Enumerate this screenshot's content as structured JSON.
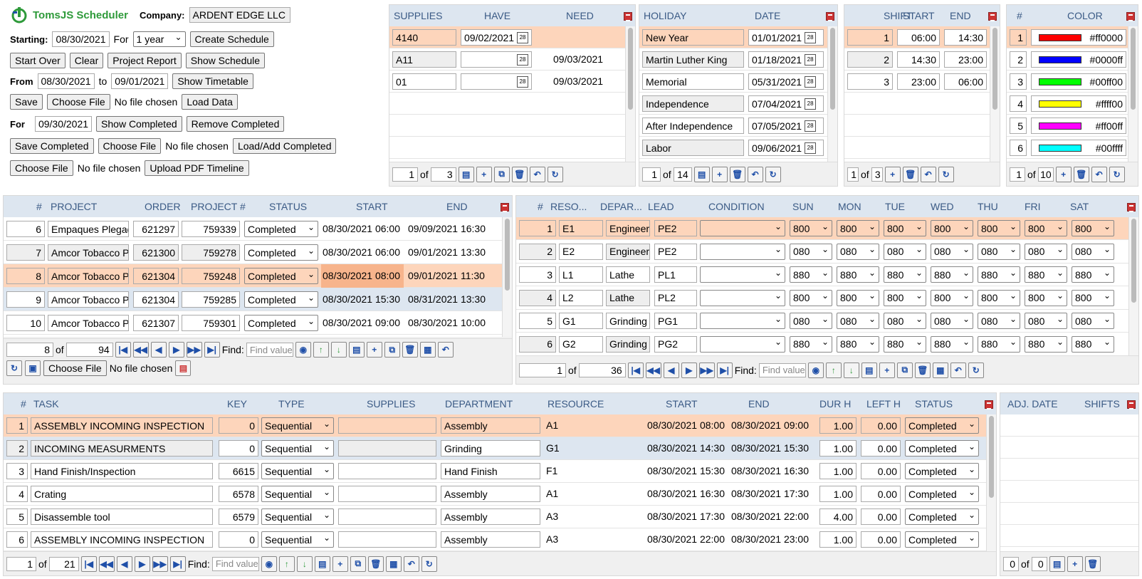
{
  "app": {
    "title": "TomsJS Scheduler",
    "company_label": "Company:",
    "company_value": "ARDENT EDGE LLC"
  },
  "controls": {
    "starting_label": "Starting:",
    "starting_value": "08/30/2021",
    "for_label": "For",
    "for_value": "1 year",
    "create_schedule": "Create Schedule",
    "start_over": "Start Over",
    "clear": "Clear",
    "project_report": "Project Report",
    "show_schedule": "Show Schedule",
    "from_label": "From",
    "from_value": "08/30/2021",
    "to_label": "to",
    "to_value": "09/01/2021",
    "show_timetable": "Show Timetable",
    "save": "Save",
    "choose_file": "Choose File",
    "no_file": "No file chosen",
    "load_data": "Load Data",
    "for2_label": "For",
    "for2_value": "09/30/2021",
    "show_completed": "Show Completed",
    "remove_completed": "Remove Completed",
    "save_completed": "Save Completed",
    "load_add_completed": "Load/Add Completed",
    "upload_pdf": "Upload PDF Timeline"
  },
  "supplies": {
    "headers": [
      "SUPPLIES",
      "HAVE",
      "NEED"
    ],
    "rows": [
      {
        "supply": "4140",
        "have": "09/02/2021",
        "need": ""
      },
      {
        "supply": "A11",
        "have": "",
        "need": "09/03/2021"
      },
      {
        "supply": "01",
        "have": "",
        "need": "09/03/2021"
      }
    ],
    "page": "1",
    "of": "of",
    "total": "3"
  },
  "holiday": {
    "headers": [
      "HOLIDAY",
      "DATE"
    ],
    "rows": [
      {
        "name": "New Year",
        "date": "01/01/2021"
      },
      {
        "name": "Martin Luther King",
        "date": "01/18/2021"
      },
      {
        "name": "Memorial",
        "date": "05/31/2021"
      },
      {
        "name": "Independence",
        "date": "07/04/2021"
      },
      {
        "name": "After Independence",
        "date": "07/05/2021"
      },
      {
        "name": "Labor",
        "date": "09/06/2021"
      }
    ],
    "page": "1",
    "of": "of",
    "total": "14"
  },
  "shift": {
    "headers": [
      "SHIFT",
      "START",
      "END"
    ],
    "rows": [
      {
        "shift": "1",
        "start": "06:00",
        "end": "14:30"
      },
      {
        "shift": "2",
        "start": "14:30",
        "end": "23:00"
      },
      {
        "shift": "3",
        "start": "23:00",
        "end": "06:00"
      }
    ],
    "page": "1",
    "of": "of",
    "total": "3"
  },
  "color": {
    "headers": [
      "#",
      "COLOR"
    ],
    "rows": [
      {
        "n": "1",
        "hex": "#ff0000"
      },
      {
        "n": "2",
        "hex": "#0000ff"
      },
      {
        "n": "3",
        "hex": "#00ff00"
      },
      {
        "n": "4",
        "hex": "#ffff00"
      },
      {
        "n": "5",
        "hex": "#ff00ff"
      },
      {
        "n": "6",
        "hex": "#00ffff"
      }
    ],
    "page": "1",
    "of": "of",
    "total": "10"
  },
  "project": {
    "headers": [
      "#",
      "PROJECT",
      "ORDER",
      "PROJECT #",
      "STATUS",
      "START",
      "END"
    ],
    "rows": [
      {
        "n": "6",
        "project": "Empaques Plegad",
        "order": "621297",
        "pnum": "759339",
        "status": "Completed",
        "start": "08/30/2021 06:00",
        "end": "09/09/2021 16:30"
      },
      {
        "n": "7",
        "project": "Amcor Tobacco P",
        "order": "621300",
        "pnum": "759278",
        "status": "Completed",
        "start": "08/30/2021 06:00",
        "end": "09/01/2021 13:30"
      },
      {
        "n": "8",
        "project": "Amcor Tobacco P",
        "order": "621304",
        "pnum": "759248",
        "status": "Completed",
        "start": "08/30/2021 08:00",
        "end": "09/01/2021 11:30"
      },
      {
        "n": "9",
        "project": "Amcor Tobacco P",
        "order": "621304",
        "pnum": "759285",
        "status": "Completed",
        "start": "08/30/2021 15:30",
        "end": "08/31/2021 13:30"
      },
      {
        "n": "10",
        "project": "Amcor Tobacco P",
        "order": "621307",
        "pnum": "759301",
        "status": "Completed",
        "start": "08/30/2021 09:00",
        "end": "08/30/2021 10:00"
      }
    ],
    "page": "8",
    "of": "of",
    "total": "94",
    "find_label": "Find:",
    "find_placeholder": "Find value",
    "choose_file": "Choose File",
    "no_file": "No file chosen"
  },
  "resource": {
    "headers": [
      "#",
      "RESO...",
      "DEPAR...",
      "LEAD",
      "CONDITION",
      "SUN",
      "MON",
      "TUE",
      "WED",
      "THU",
      "FRI",
      "SAT"
    ],
    "rows": [
      {
        "n": "1",
        "res": "E1",
        "dept": "Engineeri",
        "lead": "PE2",
        "val": "800"
      },
      {
        "n": "2",
        "res": "E2",
        "dept": "Engineeri",
        "lead": "PE2",
        "val": "080"
      },
      {
        "n": "3",
        "res": "L1",
        "dept": "Lathe",
        "lead": "PL1",
        "val": "880"
      },
      {
        "n": "4",
        "res": "L2",
        "dept": "Lathe",
        "lead": "PL2",
        "val": "800"
      },
      {
        "n": "5",
        "res": "G1",
        "dept": "Grinding",
        "lead": "PG1",
        "val": "080"
      },
      {
        "n": "6",
        "res": "G2",
        "dept": "Grinding",
        "lead": "PG2",
        "val": "880"
      }
    ],
    "page": "1",
    "of": "of",
    "total": "36",
    "find_label": "Find:",
    "find_placeholder": "Find value"
  },
  "task": {
    "headers": [
      "#",
      "TASK",
      "KEY",
      "TYPE",
      "SUPPLIES",
      "DEPARTMENT",
      "RESOURCE",
      "START",
      "END",
      "DUR H",
      "LEFT H",
      "STATUS"
    ],
    "rows": [
      {
        "n": "1",
        "task": "ASSEMBLY INCOMING INSPECTION",
        "key": "0",
        "type": "Sequential",
        "supplies": "",
        "dept": "Assembly",
        "res": "A1",
        "start": "08/30/2021 08:00",
        "end": "08/30/2021 09:00",
        "dur": "1.00",
        "left": "0.00",
        "status": "Completed"
      },
      {
        "n": "2",
        "task": "INCOMING MEASURMENTS",
        "key": "0",
        "type": "Sequential",
        "supplies": "",
        "dept": "Grinding",
        "res": "G1",
        "start": "08/30/2021 14:30",
        "end": "08/30/2021 15:30",
        "dur": "1.00",
        "left": "0.00",
        "status": "Completed"
      },
      {
        "n": "3",
        "task": "Hand Finish/Inspection",
        "key": "6615",
        "type": "Sequential",
        "supplies": "",
        "dept": "Hand Finish",
        "res": "F1",
        "start": "08/30/2021 15:30",
        "end": "08/30/2021 16:30",
        "dur": "1.00",
        "left": "0.00",
        "status": "Completed"
      },
      {
        "n": "4",
        "task": "Crating",
        "key": "6578",
        "type": "Sequential",
        "supplies": "",
        "dept": "Assembly",
        "res": "A1",
        "start": "08/30/2021 16:30",
        "end": "08/30/2021 17:30",
        "dur": "1.00",
        "left": "0.00",
        "status": "Completed"
      },
      {
        "n": "5",
        "task": "Disassemble tool",
        "key": "6579",
        "type": "Sequential",
        "supplies": "",
        "dept": "Assembly",
        "res": "A3",
        "start": "08/30/2021 17:30",
        "end": "08/30/2021 22:00",
        "dur": "4.00",
        "left": "0.00",
        "status": "Completed"
      },
      {
        "n": "6",
        "task": "ASSEMBLY INCOMING INSPECTION",
        "key": "0",
        "type": "Sequential",
        "supplies": "",
        "dept": "Assembly",
        "res": "A3",
        "start": "08/30/2021 22:00",
        "end": "08/30/2021 23:00",
        "dur": "1.00",
        "left": "0.00",
        "status": "Completed"
      }
    ],
    "page": "1",
    "of": "of",
    "total": "21",
    "find_label": "Find:",
    "find_placeholder": "Find value"
  },
  "adj": {
    "headers": [
      "ADJ. DATE",
      "SHIFTS"
    ],
    "page": "0",
    "of": "of",
    "total": "0"
  }
}
